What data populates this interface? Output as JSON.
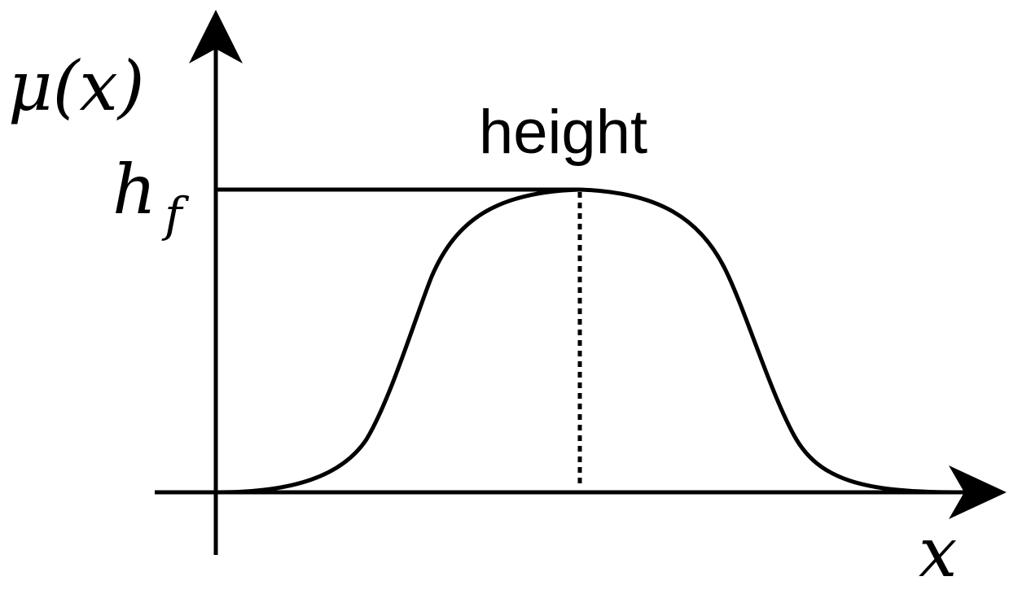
{
  "diagram": {
    "y_axis_label": "μ(x)",
    "x_axis_label": "x",
    "height_value_label": "h",
    "height_value_subscript": "f",
    "annotation": "height"
  },
  "colors": {
    "stroke": "#000000",
    "background": "#ffffff"
  }
}
